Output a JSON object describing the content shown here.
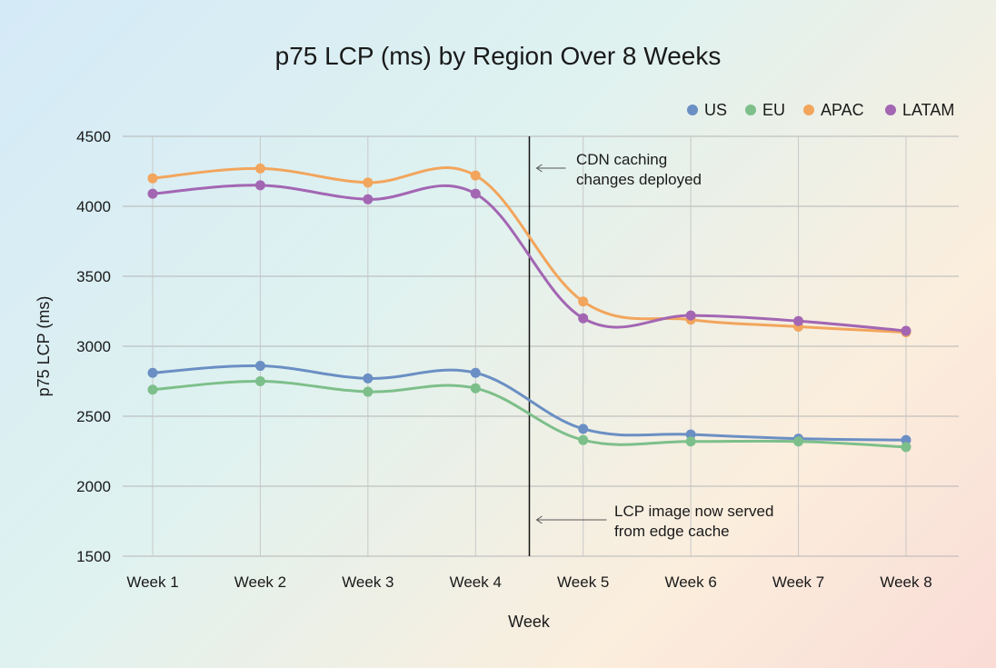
{
  "chart_data": {
    "type": "line",
    "title": "p75 LCP (ms) by Region Over 8 Weeks",
    "xlabel": "Week",
    "ylabel": "p75 LCP (ms)",
    "categories": [
      "Week 1",
      "Week 2",
      "Week 3",
      "Week 4",
      "Week 5",
      "Week 6",
      "Week 7",
      "Week 8"
    ],
    "ylim": [
      1500,
      4500
    ],
    "yticks": [
      1500,
      2000,
      2500,
      3000,
      3500,
      4000,
      4500
    ],
    "grid": true,
    "legend_position": "top-right",
    "series": [
      {
        "name": "US",
        "color": "#6b8fc4",
        "values": [
          2810,
          2860,
          2770,
          2810,
          2410,
          2370,
          2340,
          2330
        ]
      },
      {
        "name": "EU",
        "color": "#7dbf8a",
        "values": [
          2690,
          2750,
          2675,
          2700,
          2330,
          2320,
          2320,
          2280
        ]
      },
      {
        "name": "APAC",
        "color": "#f2a55c",
        "values": [
          4200,
          4270,
          4170,
          4220,
          3320,
          3190,
          3140,
          3100
        ]
      },
      {
        "name": "LATAM",
        "color": "#a366b3",
        "values": [
          4090,
          4150,
          4050,
          4090,
          3200,
          3220,
          3180,
          3110
        ]
      }
    ],
    "annotations": {
      "event_line_between": [
        "Week 4",
        "Week 5"
      ],
      "top_note": [
        "CDN caching",
        "changes deployed"
      ],
      "bottom_note": [
        "LCP image now served",
        "from edge cache"
      ]
    }
  }
}
